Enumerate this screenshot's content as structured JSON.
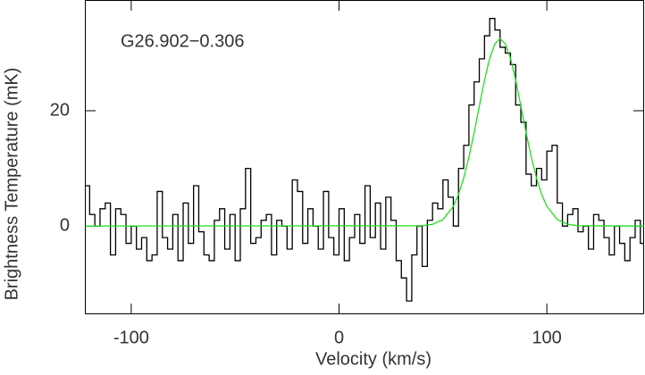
{
  "chart_data": {
    "type": "line",
    "annotation": "G26.902−0.306",
    "x_label": "Velocity (km/s)",
    "y_label": "Brightness Temperature (mK)",
    "xlim": [
      -122.3,
      146.8
    ],
    "ylim": [
      -15.3,
      39.2
    ],
    "xticks": [
      -100,
      0,
      100
    ],
    "yticks": [
      0,
      20
    ],
    "series": [
      {
        "color": "#000000",
        "drawstyle": "steps-mid",
        "x": [
          -121.25,
          -118.75,
          -116.25,
          -113.75,
          -111.25,
          -108.75,
          -106.25,
          -103.75,
          -101.25,
          -98.75,
          -96.25,
          -93.75,
          -91.25,
          -88.75,
          -86.25,
          -83.75,
          -81.25,
          -78.75,
          -76.25,
          -73.75,
          -71.25,
          -68.75,
          -66.25,
          -63.75,
          -61.25,
          -58.75,
          -56.25,
          -53.75,
          -51.25,
          -48.75,
          -46.25,
          -43.75,
          -41.25,
          -38.75,
          -36.25,
          -33.75,
          -31.25,
          -28.75,
          -26.25,
          -23.75,
          -21.25,
          -18.75,
          -16.25,
          -13.75,
          -11.25,
          -8.75,
          -6.25,
          -3.75,
          -1.25,
          1.25,
          3.75,
          6.25,
          8.75,
          11.25,
          13.75,
          16.25,
          18.75,
          21.25,
          23.75,
          26.25,
          28.75,
          31.25,
          33.75,
          36.25,
          38.75,
          41.25,
          43.75,
          46.25,
          48.75,
          51.25,
          53.75,
          56.25,
          58.75,
          61.25,
          63.75,
          66.25,
          68.75,
          71.25,
          73.75,
          76.25,
          78.75,
          81.25,
          83.75,
          86.25,
          88.75,
          91.25,
          93.75,
          96.25,
          98.75,
          101.25,
          103.75,
          106.25,
          108.75,
          111.25,
          113.75,
          116.25,
          118.75,
          121.25,
          123.75,
          126.25,
          128.75,
          131.25,
          133.75,
          136.25,
          138.75,
          141.25,
          143.75,
          146.25
        ],
        "values": [
          7,
          2,
          0,
          3,
          4,
          -5,
          3,
          2,
          -3,
          0,
          -4,
          -2,
          -6,
          -5,
          6,
          -2,
          -4,
          2,
          -6,
          4,
          -3,
          7,
          -1,
          -5,
          -6,
          1,
          3,
          -4,
          2,
          -6,
          3,
          10,
          -3,
          -2,
          1,
          2,
          -5,
          1,
          0,
          -4,
          8,
          6,
          -3,
          3,
          0,
          -4,
          6,
          -2,
          -5,
          3,
          -6,
          -2,
          2,
          -3,
          7,
          -2,
          4,
          -4,
          5,
          1,
          -6,
          -9,
          -13,
          -5,
          0,
          -7,
          1,
          4,
          3,
          8,
          5,
          0,
          10,
          14,
          21,
          25,
          29,
          33,
          36,
          34,
          31,
          30,
          28,
          21,
          18,
          9,
          7,
          10,
          8,
          13,
          14,
          4,
          0,
          2,
          3,
          -1,
          0,
          -4,
          2,
          1,
          -2,
          -5,
          0,
          -3,
          -6,
          -2,
          1,
          -3
        ]
      },
      {
        "color": "#22dd22",
        "x": [
          -122,
          40,
          45,
          50,
          55,
          57.5,
          60,
          62.5,
          65,
          67.5,
          70,
          72.5,
          75,
          77.5,
          80,
          82.5,
          85,
          87.5,
          90,
          92.5,
          95,
          97.5,
          100,
          105,
          110,
          115,
          147
        ],
        "values": [
          0,
          0.06,
          0.3,
          1.12,
          3.42,
          5.48,
          8.33,
          11.96,
          16.2,
          20.8,
          25.3,
          29.1,
          31.6,
          32.5,
          31.6,
          29.1,
          25.3,
          20.8,
          16.2,
          11.96,
          8.33,
          5.48,
          3.42,
          1.12,
          0.3,
          0.06,
          0
        ]
      }
    ]
  }
}
